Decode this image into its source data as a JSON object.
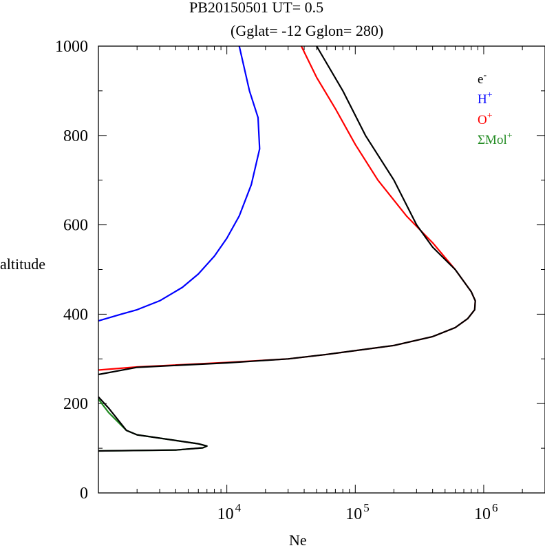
{
  "chart_data": {
    "type": "line",
    "title": "PB20150501   UT=  0.5",
    "subtitle": "(Gglat= -12   Gglon=  280)",
    "xlabel": "Ne",
    "ylabel": "altitude",
    "x_scale": "log",
    "xlim": [
      1000,
      3000000
    ],
    "ylim": [
      0,
      1000
    ],
    "x_ticks": [
      {
        "base": "10",
        "exp": "4",
        "value": 10000
      },
      {
        "base": "10",
        "exp": "5",
        "value": 100000
      },
      {
        "base": "10",
        "exp": "6",
        "value": 1000000
      }
    ],
    "y_ticks": [
      {
        "label": "0",
        "value": 0
      },
      {
        "label": "200",
        "value": 200
      },
      {
        "label": "400",
        "value": 400
      },
      {
        "label": "600",
        "value": 600
      },
      {
        "label": "800",
        "value": 800
      },
      {
        "label": "1000",
        "value": 1000
      }
    ],
    "legend_position": "top-right",
    "series": [
      {
        "name": "e",
        "sup": "-",
        "color": "#000000",
        "points": [
          [
            1000,
            94
          ],
          [
            4000,
            96
          ],
          [
            6500,
            101
          ],
          [
            7000,
            105
          ],
          [
            6000,
            110
          ],
          [
            2000,
            130
          ],
          [
            1650,
            140
          ],
          [
            1200,
            190
          ],
          [
            1000,
            215
          ],
          [
            null,
            null
          ],
          [
            1000,
            265
          ],
          [
            2000,
            281
          ],
          [
            10000,
            291
          ],
          [
            30000,
            300
          ],
          [
            60000,
            310
          ],
          [
            200000,
            330
          ],
          [
            400000,
            350
          ],
          [
            600000,
            370
          ],
          [
            750000,
            390
          ],
          [
            850000,
            410
          ],
          [
            860000,
            430
          ],
          [
            800000,
            450
          ],
          [
            600000,
            500
          ],
          [
            400000,
            550
          ],
          [
            300000,
            600
          ],
          [
            200000,
            700
          ],
          [
            120000,
            800
          ],
          [
            80000,
            900
          ],
          [
            50000,
            1000
          ]
        ]
      },
      {
        "name": "H",
        "sup": "+",
        "color": "#0000ff",
        "points": [
          [
            1000,
            385
          ],
          [
            1500,
            400
          ],
          [
            2000,
            410
          ],
          [
            3000,
            430
          ],
          [
            4500,
            460
          ],
          [
            6000,
            490
          ],
          [
            8000,
            530
          ],
          [
            10000,
            570
          ],
          [
            12500,
            620
          ],
          [
            15500,
            690
          ],
          [
            18000,
            770
          ],
          [
            17500,
            840
          ],
          [
            15000,
            900
          ],
          [
            12500,
            1000
          ]
        ]
      },
      {
        "name": "O",
        "sup": "+",
        "color": "#ff0000",
        "points": [
          [
            1000,
            275
          ],
          [
            2000,
            282
          ],
          [
            10000,
            292
          ],
          [
            30000,
            300
          ],
          [
            60000,
            310
          ],
          [
            200000,
            330
          ],
          [
            400000,
            350
          ],
          [
            600000,
            370
          ],
          [
            750000,
            390
          ],
          [
            850000,
            410
          ],
          [
            860000,
            430
          ],
          [
            800000,
            450
          ],
          [
            600000,
            500
          ],
          [
            400000,
            560
          ],
          [
            250000,
            620
          ],
          [
            150000,
            700
          ],
          [
            100000,
            780
          ],
          [
            70000,
            860
          ],
          [
            50000,
            930
          ],
          [
            38000,
            1000
          ]
        ]
      },
      {
        "name": "ΣMol",
        "sup": "+",
        "color": "#228b22",
        "points": [
          [
            1000,
            94
          ],
          [
            4000,
            96
          ],
          [
            6500,
            101
          ],
          [
            7000,
            105
          ],
          [
            6000,
            110
          ],
          [
            2000,
            130
          ],
          [
            1650,
            140
          ],
          [
            1200,
            180
          ],
          [
            1000,
            210
          ]
        ]
      }
    ]
  }
}
